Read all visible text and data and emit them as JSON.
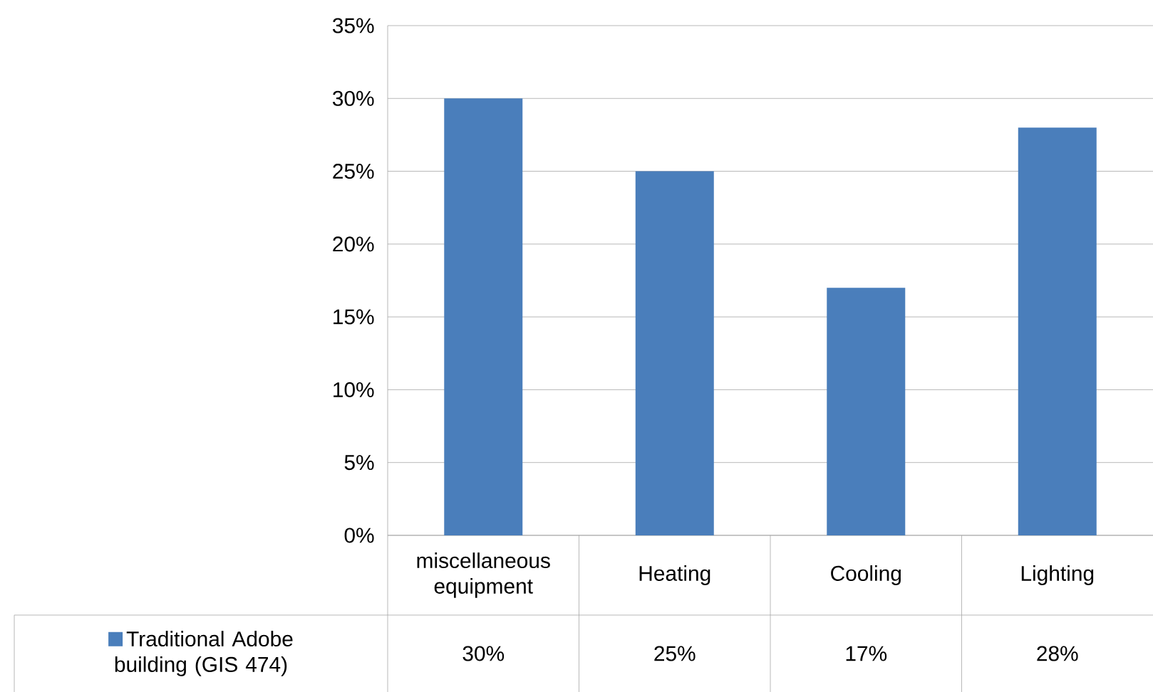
{
  "chart_data": {
    "type": "bar",
    "categories": [
      "miscellaneous equipment",
      "Heating",
      "Cooling",
      "Lighting"
    ],
    "series": [
      {
        "name": "Traditional Adobe building (GIS 474)",
        "color": "#4a7ebb",
        "values": [
          30,
          25,
          17,
          28
        ],
        "value_labels": [
          "30%",
          "25%",
          "17%",
          "28%"
        ]
      }
    ],
    "ylim": [
      0,
      35
    ],
    "yticks": [
      {
        "value": 0,
        "label": "0%"
      },
      {
        "value": 5,
        "label": "5%"
      },
      {
        "value": 10,
        "label": "10%"
      },
      {
        "value": 15,
        "label": "15%"
      },
      {
        "value": 20,
        "label": "20%"
      },
      {
        "value": 25,
        "label": "25%"
      },
      {
        "value": 30,
        "label": "30%"
      },
      {
        "value": 35,
        "label": "35%"
      }
    ],
    "grid": "y",
    "legend": "bottom left"
  }
}
